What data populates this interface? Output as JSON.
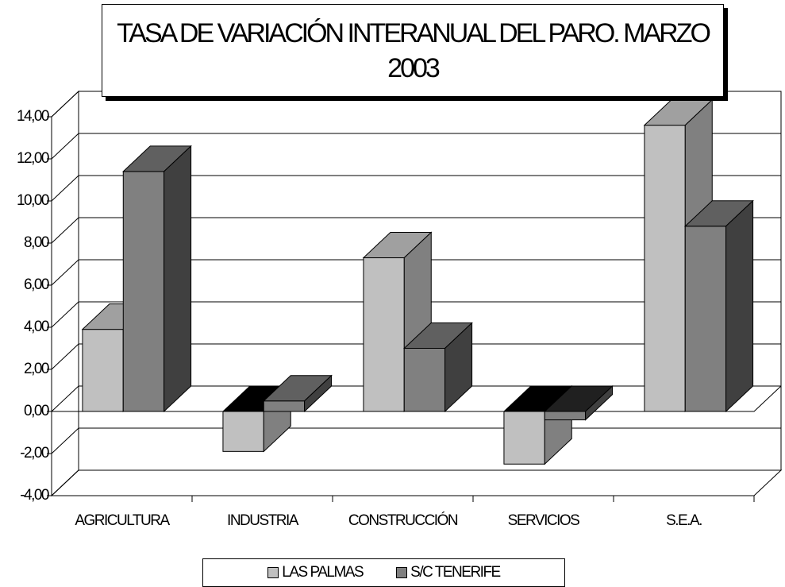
{
  "chart_data": {
    "type": "bar3d",
    "title": "TASA DE VARIACIÓN INTERANUAL DEL PARO. MARZO 2003",
    "categories": [
      "AGRICULTURA",
      "INDUSTRIA",
      "CONSTRUCCIÓN",
      "SERVICIOS",
      "S.E.A."
    ],
    "series": [
      {
        "name": "LAS PALMAS",
        "color": "#c0c0c0",
        "values": [
          3.9,
          -1.9,
          7.3,
          -2.5,
          13.6
        ]
      },
      {
        "name": "S/C TENERIFE",
        "color": "#808080",
        "values": [
          11.4,
          0.5,
          3.0,
          -0.4,
          8.8
        ]
      }
    ],
    "ylim": [
      -4,
      14
    ],
    "yticks": [
      {
        "value": -4,
        "label": "-4,00"
      },
      {
        "value": -2,
        "label": "-2,00"
      },
      {
        "value": 0,
        "label": "0,00"
      },
      {
        "value": 2,
        "label": "2,00"
      },
      {
        "value": 4,
        "label": "4,00"
      },
      {
        "value": 6,
        "label": "6,00"
      },
      {
        "value": 8,
        "label": "8,00"
      },
      {
        "value": 10,
        "label": "10,00"
      },
      {
        "value": 12,
        "label": "12,00"
      },
      {
        "value": 14,
        "label": "14,00"
      }
    ],
    "grid": true
  }
}
